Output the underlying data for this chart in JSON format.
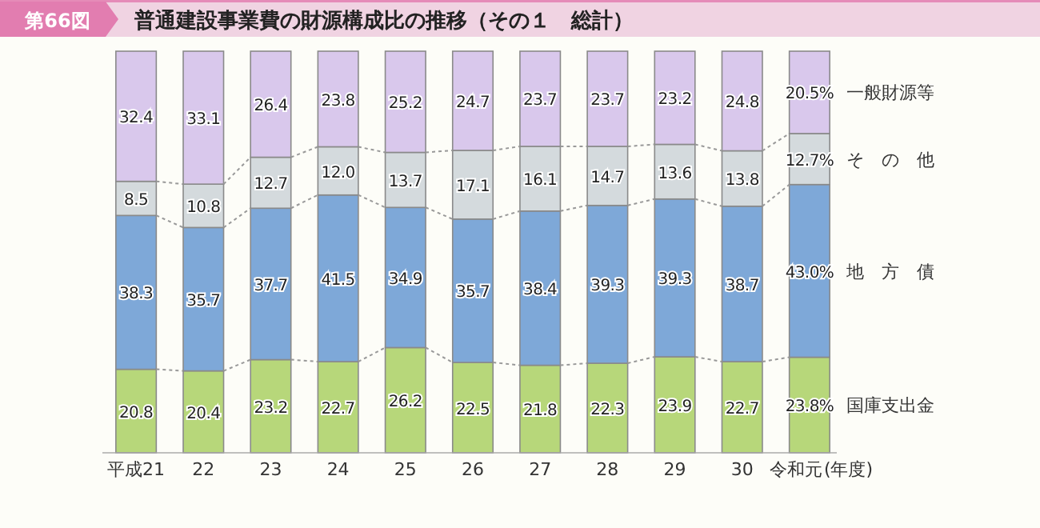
{
  "chart_data": {
    "type": "bar",
    "stacked": true,
    "title": "普通建設事業費の財源構成比の推移（その１　総計）",
    "xlabel": "(年度)",
    "annotations": [
      "第66図"
    ],
    "categories": [
      "平成21",
      "22",
      "23",
      "24",
      "25",
      "26",
      "27",
      "28",
      "29",
      "30",
      "令和元"
    ],
    "series": [
      {
        "name": "国庫支出金",
        "color": "#b7d77a",
        "values": [
          20.8,
          20.4,
          23.2,
          22.7,
          26.2,
          22.5,
          21.8,
          22.3,
          23.9,
          22.7,
          23.8
        ],
        "value_labels": [
          "20.8",
          "20.4",
          "23.2",
          "22.7",
          "26.2",
          "22.5",
          "21.8",
          "22.3",
          "23.9",
          "22.7",
          "23.8%"
        ]
      },
      {
        "name": "地　方　債",
        "color": "#7ea8d8",
        "values": [
          38.3,
          35.7,
          37.7,
          41.5,
          34.9,
          35.7,
          38.4,
          39.3,
          39.3,
          38.7,
          43.0
        ],
        "value_labels": [
          "38.3",
          "35.7",
          "37.7",
          "41.5",
          "34.9",
          "35.7",
          "38.4",
          "39.3",
          "39.3",
          "38.7",
          "43.0%"
        ]
      },
      {
        "name": "そ　の　他",
        "color": "#d4dadd",
        "values": [
          8.5,
          10.8,
          12.7,
          12.0,
          13.7,
          17.1,
          16.1,
          14.7,
          13.6,
          13.8,
          12.7
        ],
        "value_labels": [
          "8.5",
          "10.8",
          "12.7",
          "12.0",
          "13.7",
          "17.1",
          "16.1",
          "14.7",
          "13.6",
          "13.8",
          "12.7%"
        ]
      },
      {
        "name": "一般財源等",
        "color": "#d9c8ec",
        "values": [
          32.4,
          33.1,
          26.4,
          23.8,
          25.2,
          24.7,
          23.7,
          23.7,
          23.2,
          24.8,
          20.5
        ],
        "value_labels": [
          "32.4",
          "33.1",
          "26.4",
          "23.8",
          "25.2",
          "24.7",
          "23.7",
          "23.7",
          "23.2",
          "24.8",
          "20.5%"
        ]
      }
    ]
  }
}
